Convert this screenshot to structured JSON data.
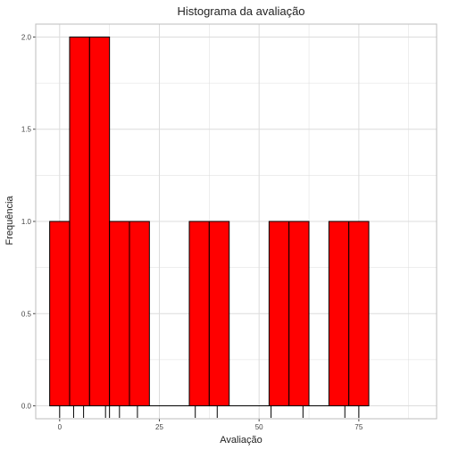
{
  "chart_data": {
    "type": "bar",
    "title": "Histograma da avaliação",
    "xlabel": "Avaliação",
    "ylabel": "Frequência",
    "xlim": [
      -6,
      94.5
    ],
    "ylim": [
      -0.07,
      2.07
    ],
    "x_ticks": [
      0,
      25,
      50,
      75
    ],
    "y_ticks": [
      0.0,
      0.5,
      1.0,
      1.5,
      2.0
    ],
    "y_tick_labels": [
      "0.0",
      "0.5",
      "1.0",
      "1.5",
      "2.0"
    ],
    "bins": [
      {
        "x0": -2.5,
        "x1": 2.5,
        "count": 1
      },
      {
        "x0": 2.5,
        "x1": 7.5,
        "count": 2
      },
      {
        "x0": 7.5,
        "x1": 12.5,
        "count": 2
      },
      {
        "x0": 12.5,
        "x1": 17.5,
        "count": 1
      },
      {
        "x0": 17.5,
        "x1": 22.5,
        "count": 1
      },
      {
        "x0": 32.5,
        "x1": 37.5,
        "count": 1
      },
      {
        "x0": 37.5,
        "x1": 42.5,
        "count": 1
      },
      {
        "x0": 52.5,
        "x1": 57.5,
        "count": 1
      },
      {
        "x0": 57.5,
        "x1": 62.5,
        "count": 1
      },
      {
        "x0": 67.5,
        "x1": 72.5,
        "count": 1
      },
      {
        "x0": 72.5,
        "x1": 77.5,
        "count": 1
      }
    ],
    "rug": [
      0,
      3.5,
      6,
      11.5,
      12.5,
      15,
      19.5,
      34,
      39.5,
      53,
      61,
      71.5,
      75
    ],
    "bar_color": "#ff0000",
    "bar_border": "#000000",
    "grid": true,
    "grid_color": "#dcdcdc",
    "panel_border": "#bdbdbd"
  }
}
